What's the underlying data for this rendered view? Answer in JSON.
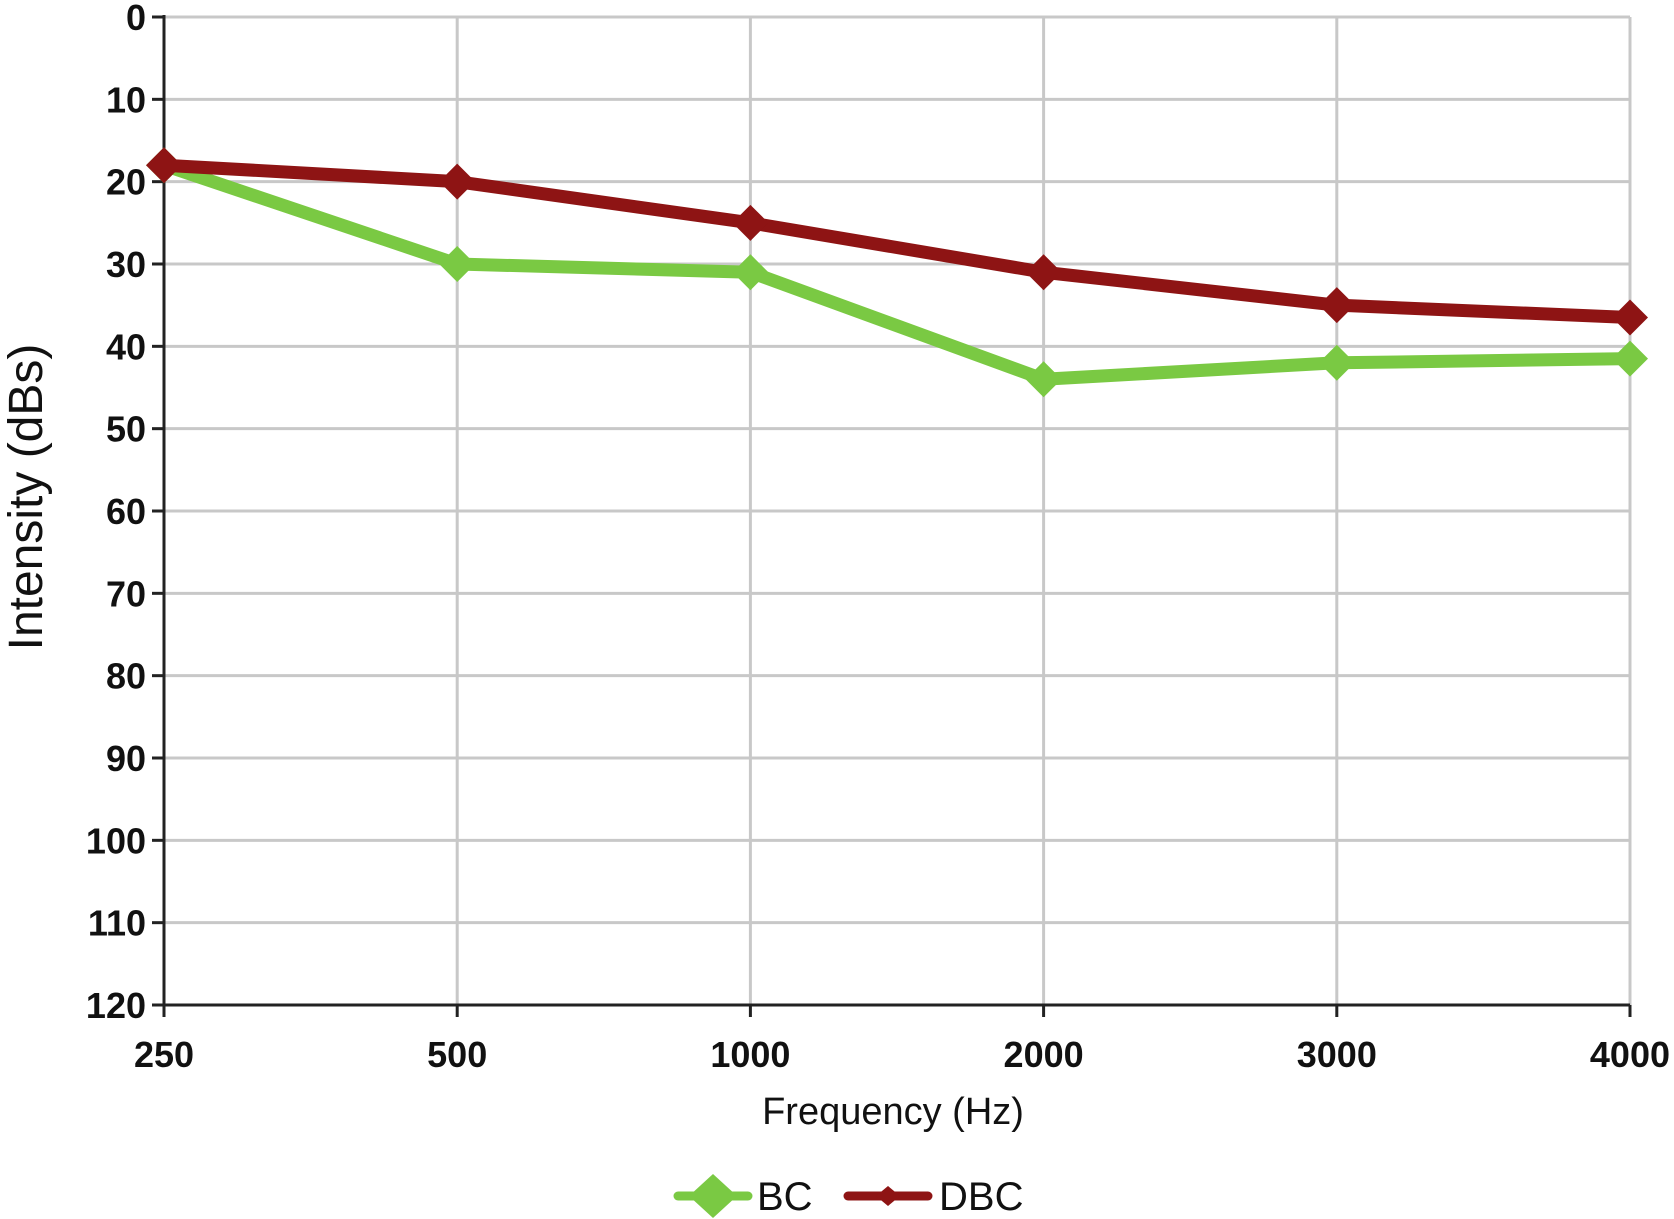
{
  "chart_data": {
    "type": "line",
    "title": "",
    "xlabel": "Frequency (Hz)",
    "ylabel": "Intensity (dBs)",
    "categories": [
      "250",
      "500",
      "1000",
      "2000",
      "3000",
      "4000"
    ],
    "y_ticks": [
      "0",
      "10",
      "20",
      "30",
      "40",
      "50",
      "60",
      "70",
      "80",
      "90",
      "100",
      "110",
      "120"
    ],
    "ylim": [
      0,
      120
    ],
    "y_inverted": true,
    "grid": true,
    "legend_position": "bottom",
    "series": [
      {
        "name": "BC",
        "color": "#7ac943",
        "marker": "diamond",
        "values": [
          18,
          30,
          31,
          44,
          42,
          41.5
        ]
      },
      {
        "name": "DBC",
        "color": "#8e1414",
        "marker": "diamond",
        "values": [
          18,
          20,
          25,
          31,
          35,
          36.5
        ]
      }
    ]
  }
}
